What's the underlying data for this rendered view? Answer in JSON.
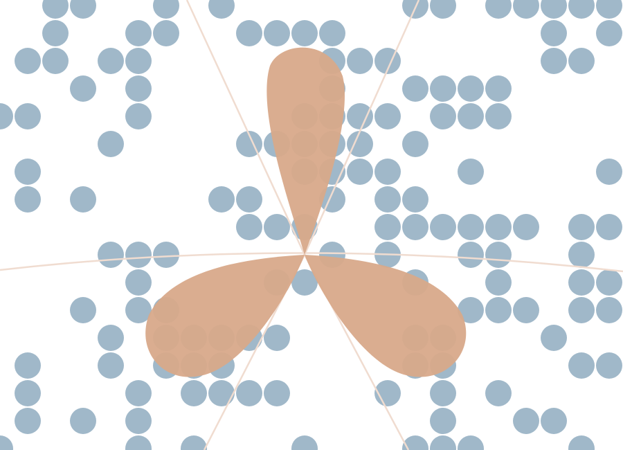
{
  "colors": {
    "background": "#ffffff",
    "dot": "#a0b8c9",
    "petal": "#d8a98a",
    "guide_line": "#f0dcd0"
  },
  "dot_rows": [
    ". . # # . . # . # . . . . . . # # . # # # # # #",
    ". . # . . # # . . # # # # . . . . . . . # . # .",
    ". # # . # # . . . . . . # # # . . . . . # # . .",
    ". . . # . # . . . . . . # . . # # # # . . . . .",
    "# # . . . # . . . . . # # # # . # # # . . . . .",
    ". . . . # . . . . # # # # # . # . . . . . . . .",
    ". # . . . . . . . . . # # # # . . # . . . . # .",
    ". # . # . . . . # # . . # . # # . . . . . . . .",
    ". . . . . . . . . # # # . . # # # # # # . # # .",
    ". . . . # # # . . . . . # . # . . # # . . # . .",
    ". . . . . # . . . . # # . . . # . . # . . # # .",
    ". . . # . # # . . . . . . . . . . # # # . # # .",
    ". . . . # . # # # # # . . . . # # . . . # . . .",
    ". # . . # . # # # . . . . . . # # . . . . # # .",
    ". # . . . # . # # # # . . . # . # . # . . . . .",
    ". # . # . # . . . . . . . . . . # . . # # . . .",
    "# . . . . # . # . . . # . . . # # # . . . # . ."
  ],
  "trefoil": {
    "lobes": 3,
    "lobe_directions_deg": [
      -90,
      30,
      150
    ]
  }
}
